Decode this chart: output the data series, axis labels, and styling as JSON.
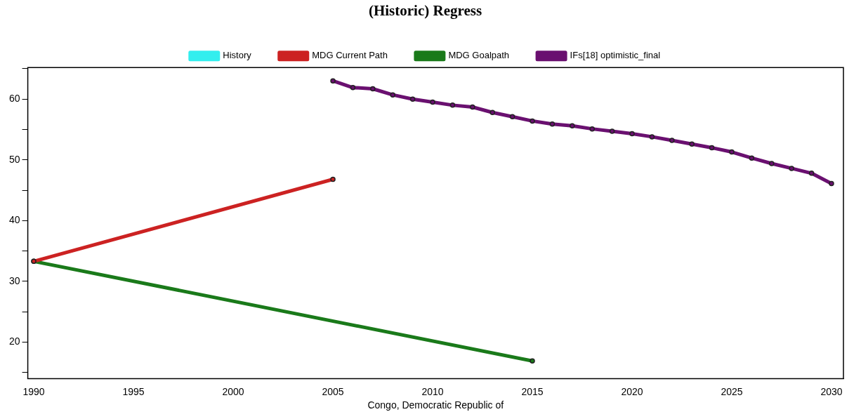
{
  "chart_data": {
    "type": "line",
    "title": "(Historic) Regress",
    "xlabel": "Congo, Democratic Republic of",
    "series": [
      {
        "name": "History",
        "color": "#33eeee"
      },
      {
        "name": "MDG Current Path",
        "color": "#cc2222",
        "x": [
          1990,
          2005
        ],
        "values": [
          33.3,
          46.8
        ]
      },
      {
        "name": "MDG Goalpath",
        "color": "#1a7a1a",
        "x": [
          1990,
          2015
        ],
        "values": [
          33.3,
          16.9
        ]
      },
      {
        "name": "IFs[18] optimistic_final",
        "color": "#6a1070",
        "x": [
          2005,
          2006,
          2007,
          2008,
          2009,
          2010,
          2011,
          2012,
          2013,
          2014,
          2015,
          2016,
          2017,
          2018,
          2019,
          2020,
          2021,
          2022,
          2023,
          2024,
          2025,
          2026,
          2027,
          2028,
          2029,
          2030
        ],
        "values": [
          63.0,
          61.9,
          61.7,
          60.7,
          60.0,
          59.5,
          59.0,
          58.7,
          57.8,
          57.1,
          56.4,
          55.9,
          55.6,
          55.1,
          54.7,
          54.3,
          53.8,
          53.2,
          52.6,
          52.0,
          51.3,
          50.3,
          49.4,
          48.6,
          47.8,
          46.1
        ]
      }
    ],
    "xlim": [
      1989.7,
      2030.6
    ],
    "xticks": [
      1990,
      1995,
      2000,
      2005,
      2010,
      2015,
      2020,
      2025,
      2030
    ],
    "ylim": [
      14,
      65.2
    ],
    "yticks": [
      {
        "value": 15,
        "label": null
      },
      20,
      {
        "value": 25,
        "label": null
      },
      30,
      {
        "value": 35,
        "label": null
      },
      40,
      {
        "value": 45,
        "label": null
      },
      50,
      {
        "value": 55,
        "label": null
      },
      60,
      {
        "value": 65,
        "label": null
      }
    ],
    "grid": false,
    "legend": "top",
    "marker": "circle",
    "line_style": "solid"
  }
}
